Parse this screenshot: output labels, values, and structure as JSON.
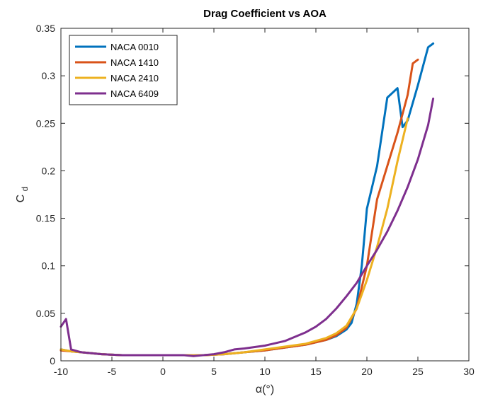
{
  "chart_data": {
    "type": "line",
    "title": "Drag Coefficient vs AOA",
    "xlabel": "α(°)",
    "ylabel": {
      "main": "C",
      "subscript": "d"
    },
    "xlim": [
      -10,
      30
    ],
    "ylim": [
      0,
      0.35
    ],
    "xticks": [
      -10,
      -5,
      0,
      5,
      10,
      15,
      20,
      25,
      30
    ],
    "yticks": [
      0,
      0.05,
      0.1,
      0.15,
      0.2,
      0.25,
      0.3,
      0.35
    ],
    "xtick_labels": [
      "-10",
      "-5",
      "0",
      "5",
      "10",
      "15",
      "20",
      "25",
      "30"
    ],
    "ytick_labels": [
      "0",
      "0.05",
      "0.1",
      "0.15",
      "0.2",
      "0.25",
      "0.3",
      "0.35"
    ],
    "grid": false,
    "legend_position": "top-left",
    "series": [
      {
        "name": "NACA 0010",
        "color": "#0072BD",
        "x": [
          -10,
          -9,
          -8,
          -6,
          -4,
          -2,
          0,
          2,
          4,
          6,
          8,
          10,
          12,
          14,
          16,
          17,
          18,
          18.5,
          19,
          19.5,
          20,
          21,
          22,
          23,
          23.5,
          24,
          25,
          26,
          26.5
        ],
        "y": [
          0.012,
          0.01,
          0.009,
          0.007,
          0.006,
          0.006,
          0.006,
          0.006,
          0.006,
          0.007,
          0.009,
          0.011,
          0.014,
          0.017,
          0.022,
          0.026,
          0.033,
          0.04,
          0.06,
          0.1,
          0.16,
          0.205,
          0.277,
          0.287,
          0.246,
          0.253,
          0.29,
          0.33,
          0.334
        ]
      },
      {
        "name": "NACA 1410",
        "color": "#D95319",
        "x": [
          -10,
          -9,
          -8,
          -6,
          -4,
          -2,
          0,
          2,
          4,
          6,
          8,
          10,
          12,
          14,
          16,
          17,
          18,
          19,
          20,
          21,
          22,
          23,
          24,
          24.5,
          25
        ],
        "y": [
          0.011,
          0.01,
          0.009,
          0.007,
          0.006,
          0.006,
          0.006,
          0.006,
          0.006,
          0.007,
          0.009,
          0.011,
          0.014,
          0.017,
          0.022,
          0.027,
          0.035,
          0.055,
          0.1,
          0.17,
          0.205,
          0.24,
          0.28,
          0.313,
          0.317
        ]
      },
      {
        "name": "NACA 2410",
        "color": "#EDB120",
        "x": [
          -10,
          -9,
          -8,
          -6,
          -4,
          -2,
          0,
          2,
          4,
          6,
          8,
          10,
          12,
          14,
          16,
          17,
          18,
          19,
          20,
          21,
          22,
          23,
          24
        ],
        "y": [
          0.012,
          0.01,
          0.009,
          0.007,
          0.006,
          0.006,
          0.006,
          0.006,
          0.006,
          0.007,
          0.009,
          0.012,
          0.015,
          0.018,
          0.024,
          0.029,
          0.037,
          0.055,
          0.085,
          0.12,
          0.16,
          0.21,
          0.255
        ]
      },
      {
        "name": "NACA 6409",
        "color": "#7E2F8E",
        "x": [
          -10,
          -9.5,
          -9,
          -8,
          -6,
          -4,
          -2,
          0,
          2,
          3,
          4,
          5,
          6,
          7,
          8,
          10,
          12,
          14,
          15,
          16,
          17,
          18,
          19,
          20,
          21,
          22,
          23,
          24,
          25,
          26,
          26.5
        ],
        "y": [
          0.036,
          0.044,
          0.012,
          0.009,
          0.007,
          0.006,
          0.006,
          0.006,
          0.006,
          0.005,
          0.006,
          0.007,
          0.009,
          0.012,
          0.013,
          0.016,
          0.021,
          0.03,
          0.036,
          0.044,
          0.055,
          0.068,
          0.082,
          0.1,
          0.117,
          0.136,
          0.158,
          0.183,
          0.212,
          0.248,
          0.276
        ]
      }
    ]
  }
}
